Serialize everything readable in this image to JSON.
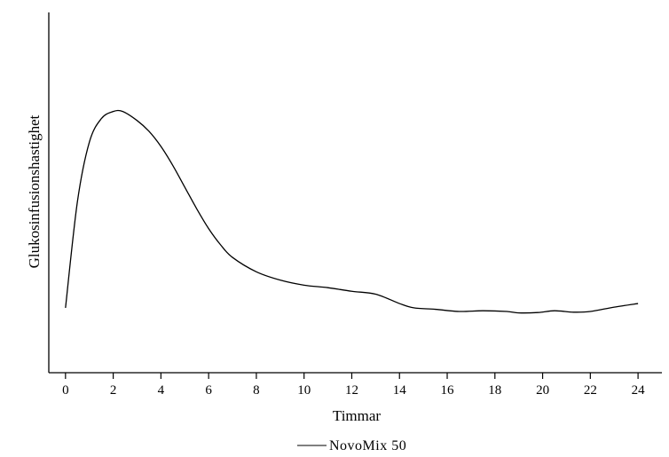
{
  "chart_data": {
    "type": "line",
    "title": "",
    "xlabel": "Timmar",
    "ylabel": "Glukosinfusionshastighet",
    "xlim": [
      -0.7,
      25.0
    ],
    "ylim": [
      0,
      1
    ],
    "x_ticks": [
      "0",
      "2",
      "4",
      "6",
      "8",
      "10",
      "12",
      "14",
      "16",
      "18",
      "20",
      "22",
      "24"
    ],
    "y_ticks": [],
    "grid": false,
    "legend_position": "bottom-center",
    "series": [
      {
        "name": "NovoMix 50",
        "color": "#000000",
        "x": [
          0,
          0.5,
          1,
          1.5,
          2,
          2.4,
          3,
          3.5,
          4,
          4.5,
          5,
          5.5,
          6,
          6.5,
          7,
          8,
          9,
          10,
          11,
          12,
          13,
          14,
          14.6,
          15.5,
          16.5,
          17.5,
          18.5,
          19,
          19.8,
          20.5,
          21.3,
          22,
          23,
          24
        ],
        "y": [
          0.18,
          0.475,
          0.64,
          0.705,
          0.725,
          0.725,
          0.7,
          0.67,
          0.628,
          0.575,
          0.515,
          0.455,
          0.4,
          0.355,
          0.32,
          0.28,
          0.257,
          0.243,
          0.236,
          0.226,
          0.218,
          0.192,
          0.18,
          0.176,
          0.17,
          0.172,
          0.17,
          0.166,
          0.167,
          0.172,
          0.168,
          0.17,
          0.182,
          0.192
        ]
      }
    ]
  }
}
